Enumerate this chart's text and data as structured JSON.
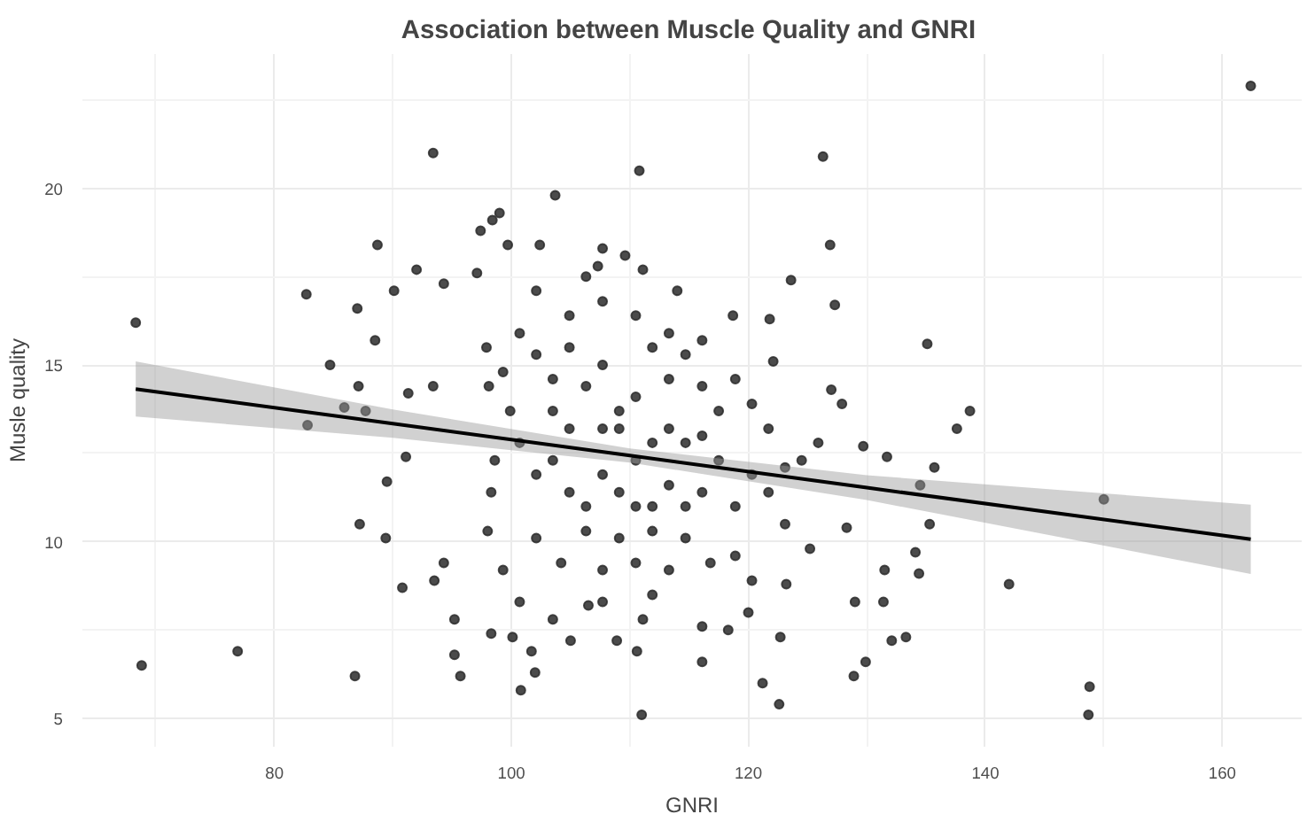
{
  "chart_data": {
    "type": "scatter",
    "title": "Association between  Muscle Quality and GNRI",
    "xlabel": "GNRI",
    "ylabel": "Musle quality",
    "xlim": [
      63.8,
      166.7
    ],
    "ylim": [
      4.2,
      23.8
    ],
    "xticks": [
      80,
      100,
      120,
      140,
      160
    ],
    "yticks": [
      5,
      10,
      15,
      20
    ],
    "grid": true,
    "series": [
      {
        "marker": "circle",
        "color": "#2b2b2b",
        "x": [
          68.3,
          68.8,
          76.9,
          82.7,
          82.8,
          84.7,
          85.9,
          86.8,
          87.0,
          87.1,
          87.2,
          87.7,
          88.7,
          88.5,
          89.5,
          89.4,
          90.1,
          90.8,
          91.1,
          91.3,
          92.0,
          93.4,
          93.5,
          93.4,
          94.3,
          94.3,
          95.2,
          95.2,
          95.7,
          97.1,
          97.4,
          98.4,
          99.0,
          98.1,
          98.3,
          98.3,
          99.7,
          99.9,
          100.1,
          100.8,
          101.7,
          102.0,
          102.4,
          103.7,
          103.5,
          105.0,
          106.5,
          107.3,
          107.7,
          108.9,
          109.6,
          110.8,
          110.6,
          111.0,
          111.1,
          111.1,
          114.0,
          116.1,
          116.1,
          118.7,
          118.3,
          120.0,
          121.2,
          121.8,
          122.1,
          122.6,
          122.7,
          123.6,
          123.2,
          126.3,
          126.9,
          127.3,
          127.0,
          127.9,
          128.3,
          129.0,
          128.9,
          129.9,
          129.7,
          131.7,
          131.5,
          131.4,
          132.1,
          133.3,
          134.1,
          134.4,
          134.5,
          135.1,
          135.3,
          135.7,
          137.6,
          138.7,
          142.0,
          148.8,
          148.7,
          150.0,
          162.4,
          100.7,
          102.1,
          103.5,
          104.9,
          106.3,
          107.7,
          109.1,
          110.5,
          111.9,
          113.3,
          114.7,
          116.1,
          117.5,
          118.9,
          120.3,
          100.7,
          102.1,
          103.5,
          104.9,
          106.3,
          107.7,
          109.1,
          110.5,
          111.9,
          113.3,
          114.7,
          116.1,
          117.5,
          118.9,
          120.3,
          121.7,
          123.1,
          124.5,
          102.1,
          104.2,
          106.3,
          107.7,
          109.1,
          110.5,
          111.9,
          113.3,
          114.7,
          116.8,
          118.9,
          120.3,
          98.0,
          99.3,
          98.6,
          100.7,
          107.7,
          111.9,
          97.9,
          99.3,
          102.1,
          104.9,
          107.7,
          110.5,
          113.3,
          116.1,
          106.3,
          109.1,
          111.9,
          107.7,
          104.9,
          116.1,
          103.5,
          113.3,
          110.5,
          114.7,
          121.7,
          123.1,
          125.2,
          125.9
        ],
        "values": [
          16.2,
          6.5,
          6.9,
          17.0,
          13.3,
          15.0,
          13.8,
          6.2,
          16.6,
          14.4,
          10.5,
          13.7,
          18.4,
          15.7,
          11.7,
          10.1,
          17.1,
          8.7,
          12.4,
          14.2,
          17.7,
          21.0,
          8.9,
          14.4,
          17.3,
          9.4,
          7.8,
          6.8,
          6.2,
          17.6,
          18.8,
          19.1,
          19.3,
          14.4,
          11.4,
          7.4,
          18.4,
          13.7,
          7.3,
          5.8,
          6.9,
          6.3,
          18.4,
          19.8,
          7.8,
          7.2,
          8.2,
          17.8,
          18.3,
          7.2,
          18.1,
          20.5,
          6.9,
          5.1,
          17.7,
          7.8,
          17.1,
          7.6,
          6.6,
          16.4,
          7.5,
          8.0,
          6.0,
          16.3,
          15.1,
          5.4,
          7.3,
          17.4,
          8.8,
          20.9,
          18.4,
          16.7,
          14.3,
          13.9,
          10.4,
          8.3,
          6.2,
          6.6,
          12.7,
          12.4,
          9.2,
          8.3,
          7.2,
          7.3,
          9.7,
          9.1,
          11.6,
          15.6,
          10.5,
          12.1,
          13.2,
          13.7,
          8.8,
          5.9,
          5.1,
          11.2,
          22.9,
          15.9,
          15.3,
          14.6,
          15.5,
          14.4,
          15.0,
          13.7,
          14.1,
          15.5,
          14.6,
          15.3,
          14.4,
          13.7,
          14.6,
          13.9,
          12.8,
          11.9,
          12.3,
          11.4,
          11.0,
          11.9,
          11.4,
          12.3,
          11.0,
          11.6,
          12.8,
          11.4,
          12.3,
          11.0,
          11.9,
          11.4,
          12.1,
          12.3,
          10.1,
          9.4,
          10.3,
          9.2,
          10.1,
          9.4,
          10.3,
          9.2,
          10.1,
          9.4,
          9.6,
          8.9,
          10.3,
          9.2,
          12.3,
          8.3,
          8.3,
          8.5,
          15.5,
          14.8,
          17.1,
          16.4,
          16.8,
          16.4,
          15.9,
          15.7,
          17.5,
          13.2,
          12.8,
          13.2,
          13.2,
          13.0,
          13.7,
          13.2,
          11.0,
          11.0,
          13.2,
          10.5,
          9.8,
          12.8
        ]
      },
      {
        "type": "line",
        "marker": "none",
        "color": "#000000",
        "x": [
          68.3,
          90,
          110,
          130,
          162.4
        ],
        "values": [
          14.32,
          13.34,
          12.44,
          11.53,
          10.07
        ],
        "lower": [
          13.54,
          12.94,
          12.24,
          11.18,
          9.09
        ],
        "upper": [
          15.1,
          13.74,
          12.64,
          11.88,
          11.05
        ]
      }
    ]
  }
}
